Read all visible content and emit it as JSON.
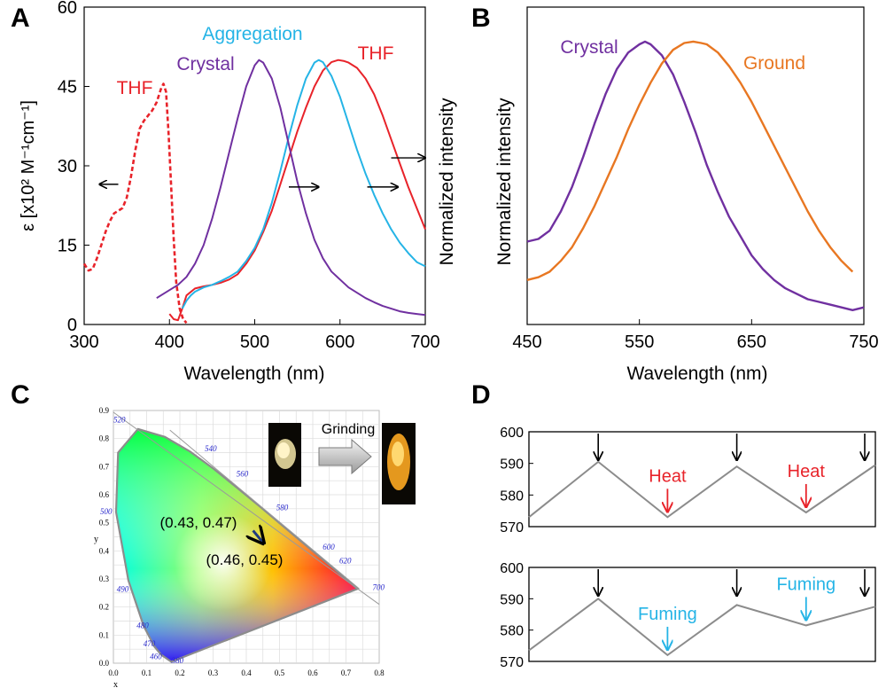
{
  "panel_labels": [
    "A",
    "B",
    "C",
    "D"
  ],
  "chart_data": [
    {
      "panel": "A",
      "type": "line",
      "xlabel": "Wavelength (nm)",
      "ylabel_left": "ε [x10² M⁻¹cm⁻¹]",
      "ylabel_right": "Normalized intensity",
      "xlim": [
        300,
        700
      ],
      "ylim": [
        0,
        60
      ],
      "xticks": [
        300,
        400,
        500,
        600,
        700
      ],
      "yticks": [
        0,
        15,
        30,
        45,
        60
      ],
      "annotations": [
        "Aggregation",
        "Crystal",
        "THF",
        "THF"
      ],
      "series": [
        {
          "name": "THF",
          "color": "#e8232a",
          "dashed": true,
          "x": [
            300,
            305,
            310,
            315,
            320,
            325,
            330,
            335,
            340,
            345,
            350,
            355,
            360,
            365,
            370,
            375,
            380,
            385,
            390,
            393,
            396,
            399,
            402,
            405,
            408,
            412,
            416,
            420
          ],
          "y": [
            11.5,
            10.2,
            10.5,
            12.5,
            15.0,
            17.5,
            19.5,
            21.0,
            21.5,
            22.0,
            24.0,
            28.0,
            33.0,
            37.0,
            38.5,
            39.5,
            40.5,
            42.0,
            44.5,
            45.5,
            44.0,
            36.0,
            26.0,
            16.0,
            8.0,
            3.0,
            1.0,
            0.3
          ]
        },
        {
          "name": "THF",
          "color": "#e8232a",
          "x": [
            400,
            405,
            410,
            415,
            420,
            430,
            440,
            450,
            460,
            470,
            480,
            490,
            500,
            510,
            520,
            530,
            540,
            550,
            560,
            570,
            580,
            590,
            598,
            605,
            610,
            620,
            630,
            640,
            650,
            660,
            670,
            680,
            690,
            700
          ],
          "y": [
            2.0,
            1.0,
            0.8,
            3.0,
            5.5,
            6.8,
            7.2,
            7.5,
            7.9,
            8.5,
            9.5,
            11.5,
            14.0,
            17.5,
            21.5,
            26.5,
            31.5,
            36.5,
            41.0,
            45.0,
            48.0,
            49.6,
            50.0,
            49.8,
            49.5,
            48.5,
            46.5,
            43.5,
            39.5,
            35.0,
            30.5,
            26.0,
            22.0,
            18.0
          ]
        },
        {
          "name": "Aggregation",
          "color": "#25b4e6",
          "x": [
            415,
            420,
            425,
            430,
            440,
            450,
            460,
            470,
            480,
            490,
            500,
            510,
            520,
            530,
            540,
            550,
            560,
            570,
            575,
            580,
            590,
            600,
            610,
            620,
            630,
            640,
            650,
            660,
            670,
            680,
            690,
            700
          ],
          "y": [
            3.0,
            4.5,
            5.5,
            6.2,
            7.0,
            7.5,
            8.2,
            9.0,
            10.0,
            12.0,
            14.5,
            18.0,
            23.0,
            29.0,
            35.5,
            41.5,
            46.5,
            49.5,
            50.0,
            49.6,
            47.0,
            43.0,
            38.0,
            33.0,
            28.5,
            24.5,
            21.0,
            18.0,
            15.5,
            13.5,
            11.8,
            11.0
          ]
        },
        {
          "name": "Crystal",
          "color": "#7030a0",
          "x": [
            385,
            390,
            400,
            410,
            420,
            430,
            440,
            450,
            460,
            470,
            480,
            490,
            500,
            505,
            510,
            520,
            530,
            540,
            550,
            560,
            570,
            580,
            590,
            600,
            610,
            620,
            630,
            640,
            650,
            660,
            670,
            680,
            690,
            700
          ],
          "y": [
            5.0,
            5.5,
            6.5,
            7.5,
            9.0,
            11.5,
            15.0,
            20.0,
            26.0,
            32.5,
            39.0,
            45.0,
            49.0,
            50.0,
            49.5,
            46.5,
            41.0,
            34.0,
            27.0,
            21.0,
            16.0,
            12.5,
            10.0,
            8.5,
            7.0,
            6.0,
            5.0,
            4.2,
            3.5,
            3.0,
            2.5,
            2.2,
            2.0,
            1.8
          ]
        }
      ],
      "arrows": [
        {
          "x1": 340,
          "x2": 318,
          "y": 26.5
        },
        {
          "x1": 540,
          "x2": 575,
          "y": 26
        },
        {
          "x1": 632,
          "x2": 668,
          "y": 26
        },
        {
          "x1": 660,
          "x2": 700,
          "y": 31.5
        }
      ]
    },
    {
      "panel": "B",
      "type": "line",
      "xlabel": "Wavelength (nm)",
      "ylabel": "Normalized intensity",
      "xlim": [
        450,
        750
      ],
      "ylim": [
        0,
        1.1
      ],
      "xticks": [
        450,
        550,
        650,
        750
      ],
      "annotations": [
        "Crystal",
        "Ground"
      ],
      "series": [
        {
          "name": "Crystal",
          "color": "#7030a0",
          "x": [
            450,
            460,
            470,
            480,
            490,
            500,
            510,
            520,
            530,
            540,
            550,
            555,
            560,
            570,
            580,
            590,
            600,
            610,
            620,
            630,
            640,
            650,
            660,
            670,
            680,
            690,
            700,
            710,
            720,
            730,
            740,
            750
          ],
          "y": [
            0.27,
            0.28,
            0.31,
            0.38,
            0.47,
            0.58,
            0.7,
            0.81,
            0.9,
            0.96,
            0.99,
            1.0,
            0.99,
            0.95,
            0.88,
            0.78,
            0.67,
            0.55,
            0.45,
            0.36,
            0.29,
            0.22,
            0.17,
            0.13,
            0.1,
            0.08,
            0.06,
            0.05,
            0.04,
            0.03,
            0.02,
            0.03
          ]
        },
        {
          "name": "Ground",
          "color": "#e87722",
          "x": [
            450,
            460,
            470,
            480,
            490,
            500,
            510,
            520,
            530,
            540,
            550,
            560,
            570,
            580,
            590,
            598,
            605,
            610,
            620,
            630,
            640,
            650,
            660,
            670,
            680,
            690,
            700,
            710,
            720,
            730,
            740
          ],
          "y": [
            0.13,
            0.14,
            0.16,
            0.2,
            0.25,
            0.32,
            0.4,
            0.49,
            0.58,
            0.68,
            0.77,
            0.85,
            0.92,
            0.97,
            0.995,
            1.0,
            0.995,
            0.99,
            0.96,
            0.91,
            0.85,
            0.78,
            0.7,
            0.62,
            0.54,
            0.46,
            0.38,
            0.31,
            0.25,
            0.2,
            0.16
          ]
        }
      ]
    },
    {
      "panel": "C",
      "type": "scatter",
      "xlabel": "x",
      "ylabel": "y",
      "xlim": [
        0.0,
        0.8
      ],
      "ylim": [
        0.0,
        0.9
      ],
      "xticks": [
        "0.0",
        "0.1",
        "0.2",
        "0.3",
        "0.4",
        "0.5",
        "0.6",
        "0.7",
        "0.8"
      ],
      "yticks": [
        "0.0",
        "0.1",
        "0.2",
        "0.3",
        "0.4",
        "0.5",
        "0.6",
        "0.7",
        "0.8",
        "0.9"
      ],
      "wavelength_labels": [
        "380",
        "460",
        "470",
        "480",
        "490",
        "500",
        "520",
        "540",
        "560",
        "580",
        "600",
        "620",
        "700"
      ],
      "points": [
        {
          "label": "(0.43, 0.47)",
          "x": 0.43,
          "y": 0.47
        },
        {
          "label": "(0.46, 0.45)",
          "x": 0.46,
          "y": 0.45
        }
      ],
      "inset_label": "Grinding"
    },
    {
      "panel": "D",
      "type": "line",
      "charts": [
        {
          "values": [
            573,
            590.5,
            573,
            589,
            574.5,
            589.5
          ],
          "ylim": [
            570,
            600
          ],
          "yticks": [
            570,
            580,
            590,
            600
          ],
          "labels": [
            "Heat",
            "Heat"
          ],
          "label_color": "#e8232a"
        },
        {
          "values": [
            573.5,
            590,
            572,
            588,
            581.5,
            587.5
          ],
          "ylim": [
            570,
            600
          ],
          "yticks": [
            570,
            580,
            590,
            600
          ],
          "labels": [
            "Fuming",
            "Fuming"
          ],
          "label_color": "#25b4e6"
        }
      ]
    }
  ]
}
